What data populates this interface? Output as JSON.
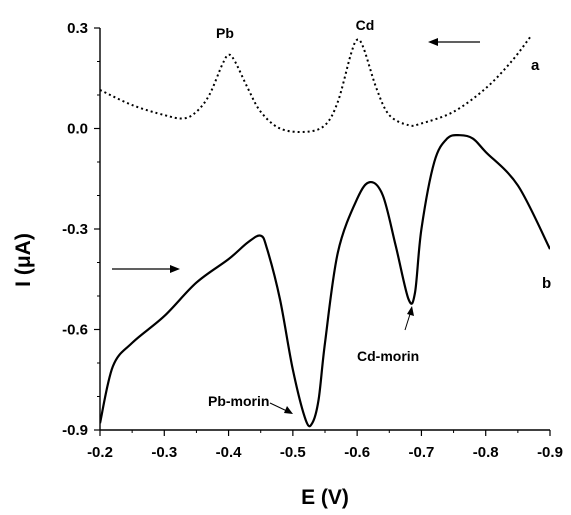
{
  "chart_data": {
    "type": "line",
    "title": "",
    "xlabel": "E (V)",
    "ylabel": "I (μA)",
    "x_reversed": true,
    "xlim": [
      -0.2,
      -0.9
    ],
    "ylim": [
      -0.9,
      0.3
    ],
    "xticks": [
      "-0.2",
      "-0.3",
      "-0.4",
      "-0.5",
      "-0.6",
      "-0.7",
      "-0.8",
      "-0.9"
    ],
    "yticks": [
      "0.3",
      "0.0",
      "-0.3",
      "-0.6",
      "-0.9"
    ],
    "grid": false,
    "series": [
      {
        "name": "a",
        "style": "dotted/dashed",
        "color": "#000000",
        "x": [
          -0.2,
          -0.25,
          -0.3,
          -0.33,
          -0.35,
          -0.37,
          -0.39,
          -0.4,
          -0.41,
          -0.43,
          -0.45,
          -0.48,
          -0.52,
          -0.55,
          -0.57,
          -0.59,
          -0.6,
          -0.61,
          -0.63,
          -0.65,
          -0.68,
          -0.7,
          -0.75,
          -0.8,
          -0.84,
          -0.87
        ],
        "y": [
          0.115,
          0.07,
          0.04,
          0.03,
          0.05,
          0.1,
          0.19,
          0.22,
          0.2,
          0.12,
          0.05,
          0.0,
          -0.01,
          0.01,
          0.08,
          0.22,
          0.265,
          0.24,
          0.12,
          0.04,
          0.01,
          0.015,
          0.05,
          0.12,
          0.2,
          0.275
        ]
      },
      {
        "name": "b",
        "style": "solid",
        "color": "#000000",
        "x": [
          -0.2,
          -0.22,
          -0.25,
          -0.3,
          -0.35,
          -0.4,
          -0.43,
          -0.45,
          -0.46,
          -0.48,
          -0.5,
          -0.52,
          -0.53,
          -0.54,
          -0.55,
          -0.57,
          -0.6,
          -0.62,
          -0.64,
          -0.66,
          -0.68,
          -0.69,
          -0.7,
          -0.72,
          -0.74,
          -0.76,
          -0.78,
          -0.8,
          -0.85,
          -0.9
        ],
        "y": [
          -0.88,
          -0.71,
          -0.64,
          -0.56,
          -0.46,
          -0.39,
          -0.34,
          -0.32,
          -0.36,
          -0.51,
          -0.72,
          -0.87,
          -0.88,
          -0.81,
          -0.64,
          -0.37,
          -0.21,
          -0.16,
          -0.2,
          -0.35,
          -0.51,
          -0.49,
          -0.3,
          -0.1,
          -0.03,
          -0.02,
          -0.03,
          -0.07,
          -0.17,
          -0.36
        ]
      }
    ],
    "annotations": {
      "peak_pb": "Pb",
      "peak_cd": "Cd",
      "curve_a": "a",
      "curve_b": "b",
      "pb_morin": "Pb-morin",
      "cd_morin": "Cd-morin"
    }
  }
}
